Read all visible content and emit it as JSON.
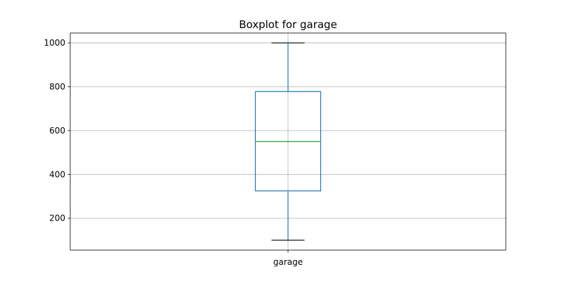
{
  "chart_data": {
    "type": "boxplot",
    "title": "Boxplot for garage",
    "xlabel": "",
    "ylabel": "",
    "categories": [
      "garage"
    ],
    "boxes": [
      {
        "category": "garage",
        "whisker_low": 100,
        "q1": 325,
        "median": 550,
        "q3": 778,
        "whisker_high": 1000
      }
    ],
    "yticks": [
      200,
      400,
      600,
      800,
      1000
    ],
    "ylim": [
      55,
      1045
    ],
    "grid": true,
    "colors": {
      "box": "#1f77b4",
      "median": "#2ca02c",
      "caps": "#000000",
      "grid": "#b0b0b0",
      "axes": "#000000"
    }
  }
}
